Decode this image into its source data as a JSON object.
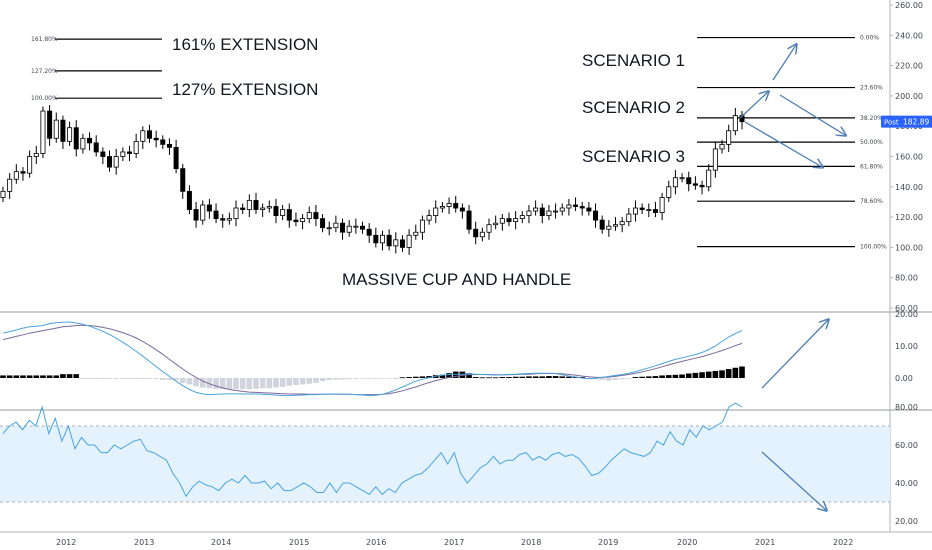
{
  "chart_data": {
    "type": "candlestick",
    "colors": {
      "candle_up": "#ffffff",
      "candle_down": "#000000",
      "candle_outline": "#000000",
      "macd_line": "#4aa3df",
      "signal_line": "#7b6a9a",
      "hist_up": "#000000",
      "hist_down": "#d1d4dc",
      "rsi_line": "#4aa3df",
      "rsi_band": "#e3f2fd",
      "arrow": "#4f7fb5",
      "price_tag": "#2962ff"
    },
    "x_axis": {
      "ticks": [
        "2012",
        "2013",
        "2014",
        "2015",
        "2016",
        "2017",
        "2018",
        "2019",
        "2020",
        "2021",
        "2022"
      ]
    },
    "price_panel": {
      "y_axis": {
        "ylim": [
          60,
          260
        ],
        "ticks": [
          "60.00",
          "80.00",
          "100.00",
          "120.00",
          "140.00",
          "160.00",
          "180.00",
          "200.00",
          "220.00",
          "240.00",
          "260.00"
        ]
      },
      "fib_levels": [
        {
          "label": "161.80%",
          "value": 237.5
        },
        {
          "label": "127.20%",
          "value": 216.5
        },
        {
          "label": "100.00%",
          "value": 198.5
        }
      ],
      "fib_projection": [
        {
          "label": "0.00%",
          "value": 238.5
        },
        {
          "label": "23.60%",
          "value": 205.5
        },
        {
          "label": "38.20%",
          "value": 185.5
        },
        {
          "label": "50.00%",
          "value": 169.5
        },
        {
          "label": "61.80%",
          "value": 153.5
        },
        {
          "label": "78.60%",
          "value": 130.5
        },
        {
          "label": "100.00%",
          "value": 100.5
        }
      ],
      "annotations": {
        "ext161": "161%  EXTENSION",
        "ext127": "127%  EXTENSION",
        "scenario1": "SCENARIO 1",
        "scenario2": "SCENARIO 2",
        "scenario3": "SCENARIO 3",
        "pattern": "MASSIVE CUP AND HANDLE"
      },
      "price_tag": {
        "label": "Post",
        "value": "182.89"
      },
      "candle_closes": [
        137,
        145,
        150,
        149,
        160,
        162,
        190,
        172,
        184,
        170,
        179,
        165,
        172,
        169,
        163,
        160,
        153,
        160,
        163,
        162,
        170,
        177,
        172,
        171,
        168,
        166,
        152,
        137,
        125,
        118,
        128,
        124,
        119,
        118,
        119,
        126,
        125,
        131,
        125,
        126,
        127,
        121,
        125,
        118,
        117,
        119,
        123,
        119,
        113,
        113,
        116,
        110,
        114,
        114,
        112,
        108,
        103,
        108,
        101,
        105,
        100,
        108,
        110,
        118,
        121,
        126,
        127,
        129,
        126,
        124,
        112,
        107,
        110,
        115,
        116,
        119,
        117,
        119,
        121,
        124,
        126,
        121,
        124,
        124,
        126,
        128,
        127,
        126,
        124,
        118,
        112,
        114,
        115,
        117,
        122,
        126,
        125,
        125,
        123,
        133,
        140,
        146,
        146,
        142,
        141,
        140,
        151,
        165,
        168,
        177,
        187,
        183
      ]
    },
    "macd_panel": {
      "y_axis": {
        "ylim": [
          -6,
          20
        ],
        "ticks": [
          "0.00",
          "10.00",
          "20.00"
        ]
      },
      "macd_line": [
        14,
        14.5,
        15,
        15.6,
        16,
        16.2,
        16.4,
        17,
        17.3,
        17.4,
        17.5,
        17.2,
        16.8,
        16.2,
        15.4,
        14.6,
        13.6,
        12.4,
        11.2,
        9.8,
        8.3,
        6.8,
        5.2,
        3.6,
        2,
        0.5,
        -1,
        -2.4,
        -3.6,
        -4.5,
        -5,
        -5.2,
        -5.1,
        -5,
        -4.9,
        -4.9,
        -5,
        -5,
        -5,
        -5.1,
        -5.2,
        -5.3,
        -5.5,
        -5.5,
        -5.4,
        -5.3,
        -5.2,
        -5.2,
        -5.1,
        -5,
        -5,
        -5.1,
        -5.1,
        -5.2,
        -5.3,
        -5.5,
        -5.4,
        -5.1,
        -4.5,
        -3.7,
        -2.8,
        -1.9,
        -1,
        -0.4,
        0.1,
        0.6,
        0.9,
        1.1,
        1.2,
        1.2,
        1.3,
        1.2,
        1.1,
        1,
        0.9,
        1,
        1.1,
        1.2,
        1.3,
        1.4,
        1.5,
        1.5,
        1.5,
        1.4,
        1,
        0.6,
        0.3,
        0,
        -0.2,
        -0.1,
        0.2,
        0.5,
        0.8,
        1.1,
        1.5,
        2,
        2.6,
        3.2,
        3.8,
        4.5,
        5.2,
        5.8,
        6.3,
        6.8,
        7.3,
        8,
        8.9,
        10,
        11.4,
        12.8,
        13.9,
        14.8
      ],
      "signal_line": [
        12,
        12.5,
        13,
        13.5,
        14,
        14.4,
        14.8,
        15.2,
        15.6,
        16,
        16.2,
        16.4,
        16.5,
        16.4,
        16.2,
        15.8,
        15.4,
        14.8,
        14.2,
        13.4,
        12.5,
        11.4,
        10.2,
        8.8,
        7.4,
        5.8,
        4.3,
        2.8,
        1.4,
        0.2,
        -0.9,
        -1.8,
        -2.5,
        -3.1,
        -3.6,
        -3.9,
        -4.2,
        -4.4,
        -4.5,
        -4.6,
        -4.7,
        -4.8,
        -4.9,
        -5,
        -5,
        -5,
        -5.1,
        -5.1,
        -5.1,
        -5.1,
        -5.1,
        -5.1,
        -5.1,
        -5.2,
        -5.2,
        -5.2,
        -5.2,
        -5.1,
        -4.9,
        -4.5,
        -4,
        -3.4,
        -2.8,
        -2.1,
        -1.4,
        -0.8,
        -0.3,
        0.2,
        0.5,
        0.8,
        1,
        1.1,
        1.1,
        1.1,
        1,
        1,
        1,
        1.1,
        1.2,
        1.2,
        1.3,
        1.4,
        1.4,
        1.4,
        1.3,
        1.1,
        0.9,
        0.6,
        0.4,
        0.2,
        0.2,
        0.3,
        0.5,
        0.8,
        1.1,
        1.5,
        1.9,
        2.4,
        2.9,
        3.5,
        4.1,
        4.7,
        5.2,
        5.7,
        6.2,
        6.7,
        7.3,
        7.9,
        8.6,
        9.3,
        10.1,
        10.8
      ],
      "histogram": [
        0.8,
        0.8,
        0.8,
        0.8,
        0.8,
        0.8,
        0.8,
        0.8,
        0.8,
        1.2,
        1.2,
        1.2,
        -0.3,
        -0.3,
        -0.3,
        -0.3,
        -0.3,
        -0.3,
        -0.3,
        -0.3,
        -0.3,
        -0.3,
        -0.3,
        -0.3,
        -0.6,
        -0.6,
        -0.6,
        -1.5,
        -2,
        -2.6,
        -3,
        -3.2,
        -3.4,
        -3.5,
        -3.5,
        -3.5,
        -3.5,
        -3.5,
        -3.4,
        -3.2,
        -3.2,
        -3,
        -2.8,
        -2.4,
        -2.2,
        -2,
        -1.8,
        -1.5,
        -1,
        -0.6,
        -0.5,
        -0.5,
        -0.4,
        -0.3,
        -0.2,
        -0.2,
        -0.2,
        -0.2,
        -0.2,
        -0.3,
        0.2,
        0.3,
        0.4,
        0.5,
        0.6,
        0.9,
        1,
        1.5,
        2,
        2,
        1.5,
        0.3,
        0.2,
        0.2,
        0.2,
        0.3,
        0.3,
        0.4,
        0.4,
        0.5,
        0.5,
        0.5,
        0.6,
        0.6,
        0.5,
        0.4,
        0.3,
        0.3,
        -0.2,
        -0.4,
        -0.6,
        -0.8,
        -0.6,
        -0.4,
        -0.2,
        0.3,
        0.4,
        0.5,
        0.6,
        0.8,
        0.9,
        1,
        1.1,
        1.4,
        1.6,
        1.8,
        2,
        2.2,
        2.4,
        2.8,
        3.2,
        3.6
      ],
      "arrow_scenario": "up"
    },
    "rsi_panel": {
      "y_axis": {
        "ylim": [
          15,
          92
        ],
        "ticks": [
          "20.00",
          "40.00",
          "60.00",
          "80.00"
        ]
      },
      "bands": [
        30,
        70
      ],
      "values": [
        66,
        70,
        72,
        68,
        73,
        70,
        80,
        66,
        74,
        62,
        70,
        58,
        64,
        60,
        60,
        56,
        56,
        60,
        58,
        60,
        62,
        63,
        57,
        56,
        54,
        52,
        45,
        40,
        33,
        38,
        41,
        39,
        38,
        36,
        40,
        42,
        40,
        44,
        40,
        40,
        41,
        37,
        40,
        36,
        36,
        38,
        40,
        38,
        35,
        35,
        40,
        35,
        40,
        40,
        38,
        36,
        34,
        38,
        34,
        37,
        35,
        40,
        42,
        44,
        45,
        48,
        52,
        56,
        50,
        56,
        45,
        40,
        44,
        48,
        50,
        54,
        50,
        52,
        52,
        55,
        56,
        52,
        54,
        52,
        55,
        56,
        54,
        55,
        53,
        49,
        44,
        45,
        48,
        52,
        55,
        58,
        56,
        55,
        54,
        56,
        62,
        60,
        67,
        62,
        60,
        68,
        64,
        70,
        68,
        70,
        72,
        80,
        82,
        80
      ],
      "arrow_scenario": "down"
    }
  }
}
